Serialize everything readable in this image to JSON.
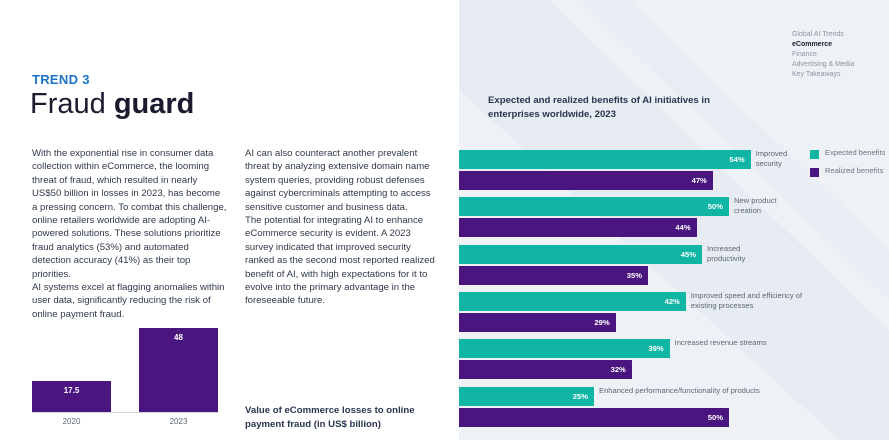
{
  "trend": {
    "label": "TREND 3",
    "title_light": "Fraud",
    "title_bold": "guard"
  },
  "nav": {
    "items": [
      "Global AI Trends",
      "eCommerce",
      "Finance",
      "Advertising & Media",
      "Key Takeaways"
    ],
    "active_index": 1
  },
  "paragraphs": {
    "left": "With the exponential rise in consumer data collection within eCommerce, the looming threat of fraud, which resulted in nearly US$50 billion in losses in 2023, has become a pressing concern. To combat this challenge, online retailers worldwide are adopting AI-powered solutions. These solutions prioritize fraud analytics (53%) and automated detection accuracy (41%) as their top priorities.\nAI systems excel at flagging anomalies within user data, significantly reducing the risk of online payment fraud.",
    "right": "AI can also counteract another prevalent threat by analyzing extensive domain name system queries, providing robust defenses against cybercriminals attempting to access sensitive customer and business data.\nThe potential for integrating AI to enhance eCommerce security is evident. A 2023 survey indicated that improved security ranked as the second most reported realized benefit of AI, with high expectations for it to evolve into the primary advantage in the foreseeable future."
  },
  "colors": {
    "expected": "#11b5a4",
    "realized": "#4b1580",
    "title_accent": "#1a73c8"
  },
  "chart_data": [
    {
      "type": "bar",
      "orientation": "horizontal",
      "title": "Expected and realized benefits of AI initiatives in enterprises worldwide, 2023",
      "categories": [
        "Improved security",
        "New product creation",
        "Increased productivity",
        "Improved speed and efficiency of existing processes",
        "Increased revenue streams",
        "Enhanced performance/functionality of products"
      ],
      "series": [
        {
          "name": "Expected benefits",
          "values": [
            54,
            50,
            45,
            42,
            39,
            25
          ]
        },
        {
          "name": "Realized benefits",
          "values": [
            47,
            44,
            35,
            29,
            32,
            50
          ]
        }
      ],
      "unit": "%",
      "xlim": [
        0,
        100
      ],
      "legend": "right"
    },
    {
      "type": "bar",
      "orientation": "vertical",
      "title": "Value of eCommerce losses to online payment fraud (in US$ billion)",
      "categories": [
        "2020",
        "2023"
      ],
      "values": [
        17.5,
        48
      ],
      "ylim": [
        0,
        48
      ]
    }
  ]
}
